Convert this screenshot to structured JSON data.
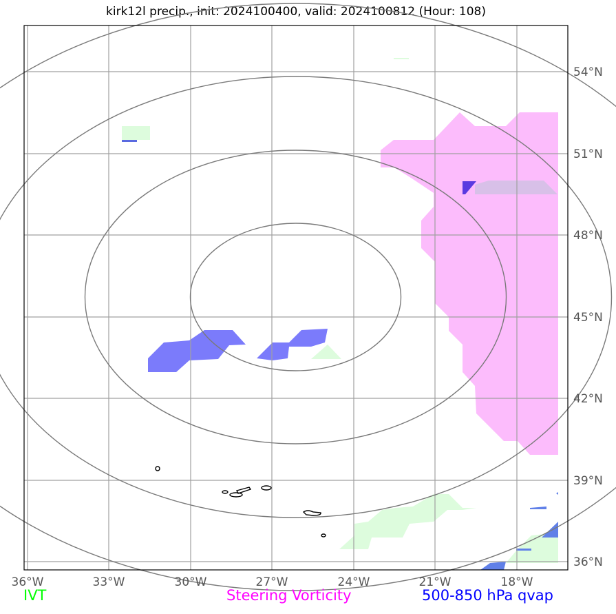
{
  "title": "kirk12l precip., init: 2024100400, valid: 2024100812 (Hour: 108)",
  "lon_labels": [
    "36°W",
    "33°W",
    "30°W",
    "27°W",
    "24°W",
    "21°W",
    "18°W"
  ],
  "lat_labels": [
    "54°N",
    "51°N",
    "48°N",
    "45°N",
    "42°N",
    "39°N",
    "36°N"
  ],
  "legend": {
    "ivt": "IVT",
    "vorticity": "Steering Vorticity",
    "qvap": "500-850 hPa qvap"
  },
  "colors": {
    "ivt": "#00ff00",
    "vorticity": "#ff00ff",
    "qvap": "#0000ff",
    "vorticity_fill": "#fcbcfc",
    "ivt_fill": "#ddfcdd",
    "qvap_fill": "#7b7bfb"
  }
}
